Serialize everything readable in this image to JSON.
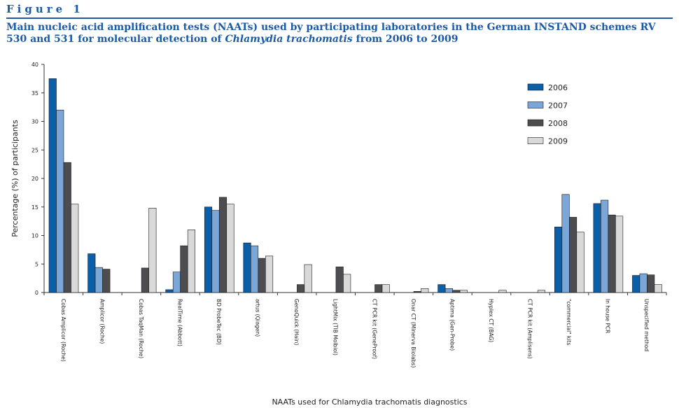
{
  "figure": {
    "label": "Figure 1",
    "title_part1": "Main nucleic acid amplification tests (NAATs) used by participating laboratories in the German INSTAND schemes RV 530 and 531 for molecular detection of ",
    "title_italic": "Chlamydia trachomatis",
    "title_part2": " from 2006 to 2009"
  },
  "chart_data": {
    "type": "bar",
    "title": "Main nucleic acid amplification tests (NAATs) used by participating laboratories in the German INSTAND schemes RV 530 and 531 for molecular detection of Chlamydia trachomatis from 2006 to 2009",
    "xlabel": "NAATs used for Chlamydia trachomatis diagnostics",
    "ylabel": "Percentage (%) of participants",
    "ylim": [
      0,
      40
    ],
    "yticks": [
      0,
      5,
      10,
      15,
      20,
      25,
      30,
      35,
      40
    ],
    "grid": false,
    "legend_position": "top-right",
    "categories": [
      "Cobas Amplicor (Roche)",
      "Amplicor (Roche)",
      "Cobas TaqMan (Roche)",
      "RealTime (Abbott)",
      "BD ProbeTec (BD)",
      "artus (Qiagen)",
      "GenoQuick (Hain)",
      "LightMix (TIB Molbiol)",
      "CT PCR kit (GeneProof)",
      "Onar CT (Minerva Biolabs)",
      "Aptima (Gen-Probe)",
      "Hyplex CT (BAG)",
      "CT PCR kit (Amplisens)",
      "\"commercial\" kits",
      "In house PCR",
      "Unspecified method"
    ],
    "series": [
      {
        "name": "2006",
        "color": "#0b5ea8",
        "values": [
          37.5,
          6.8,
          0,
          0.5,
          15.0,
          8.7,
          0,
          0,
          0,
          0,
          1.4,
          0,
          0,
          11.5,
          15.6,
          3.0
        ]
      },
      {
        "name": "2007",
        "color": "#7ba7d8",
        "values": [
          32.0,
          4.4,
          0,
          3.6,
          14.4,
          8.2,
          0,
          0,
          0,
          0,
          0.7,
          0,
          0,
          17.2,
          16.2,
          3.3
        ]
      },
      {
        "name": "2008",
        "color": "#4d4d4f",
        "values": [
          22.8,
          4.1,
          4.3,
          8.2,
          16.7,
          6.0,
          1.4,
          4.5,
          1.4,
          0.2,
          0.4,
          0,
          0,
          13.2,
          13.6,
          3.1
        ]
      },
      {
        "name": "2009",
        "color": "#d9d9da",
        "values": [
          15.5,
          0,
          14.8,
          11.0,
          15.5,
          6.4,
          4.9,
          3.2,
          1.4,
          0.7,
          0.4,
          0.4,
          0.4,
          10.6,
          13.4,
          1.4
        ]
      }
    ]
  }
}
